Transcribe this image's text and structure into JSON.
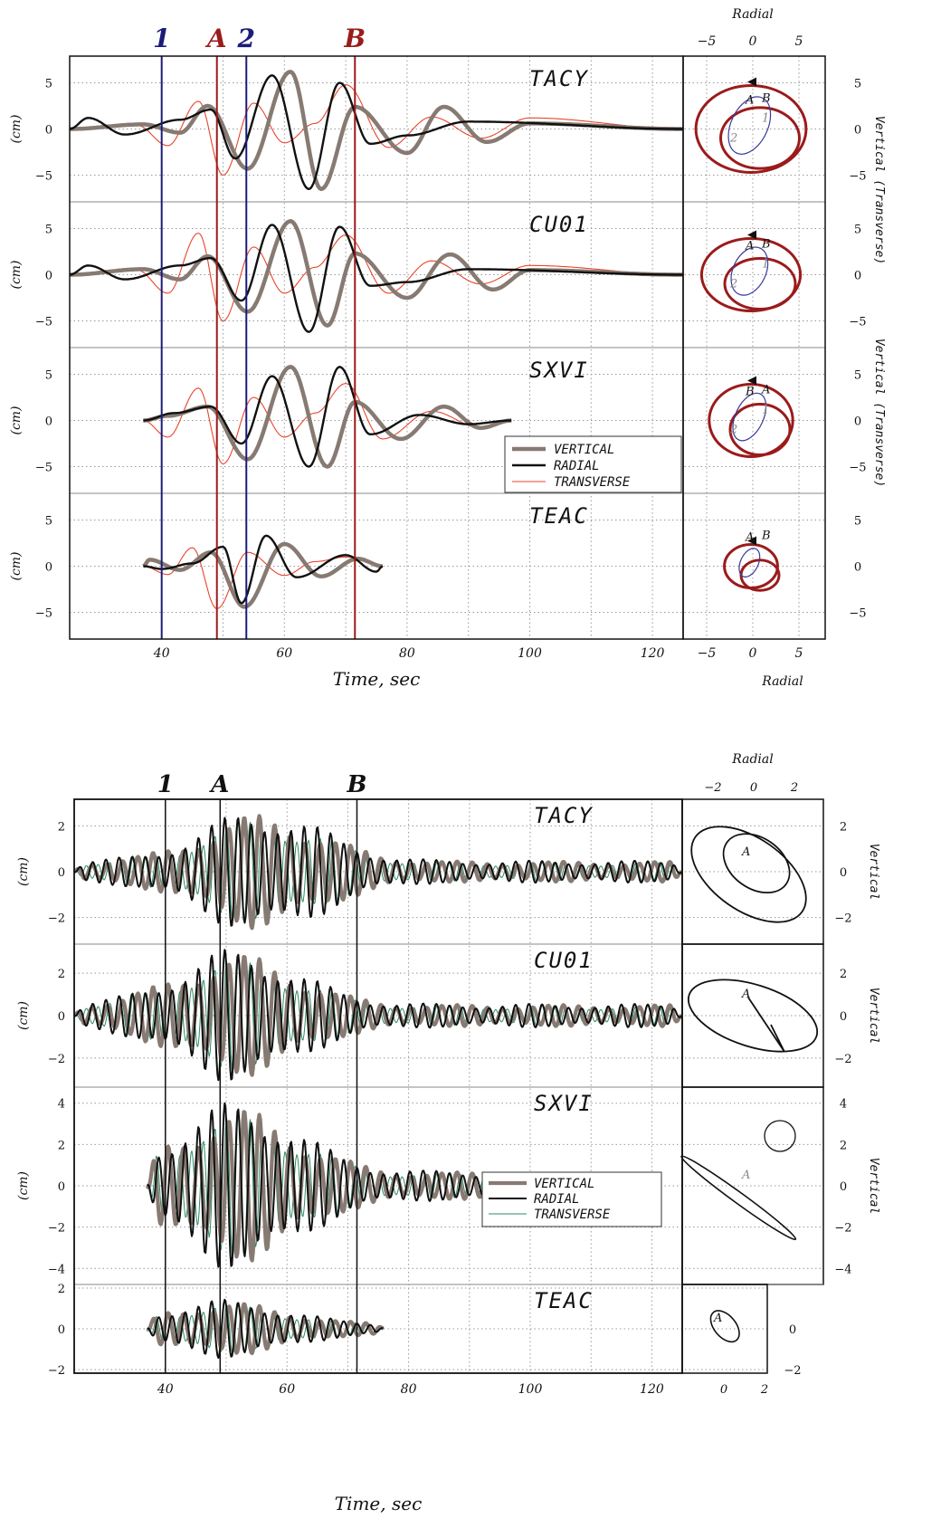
{
  "chart_data": [
    {
      "type": "line",
      "band": "long-period",
      "xlabel": "Time, sec",
      "ylabel": "(cm)",
      "xticks": [
        "40",
        "60",
        "80",
        "100",
        "120"
      ],
      "yticks": [
        "5",
        "0",
        "−5"
      ],
      "markers": [
        {
          "label": "1",
          "time": 40,
          "color": "#1c1c7a"
        },
        {
          "label": "A",
          "time": 49,
          "color": "#9b1b1b"
        },
        {
          "label": "2",
          "time": 53.8,
          "color": "#1c1c7a"
        },
        {
          "label": "B",
          "time": 71.5,
          "color": "#9b1b1b"
        }
      ],
      "legend": [
        "VERTICAL",
        "RADIAL",
        "TRANSVERSE"
      ],
      "series_colors": {
        "VERTICAL": "#877a72",
        "RADIAL": "#111111",
        "TRANSVERSE": "#e8452c"
      },
      "stations": [
        {
          "name": "TACY",
          "t_start": 25,
          "t_end": 125,
          "series": [
            {
              "name": "VERTICAL",
              "peaks": [
                [
                  37,
                  0.5
                ],
                [
                  43,
                  -0.4
                ],
                [
                  47.5,
                  2.5
                ],
                [
                  54,
                  -4.3
                ],
                [
                  61,
                  6.2
                ],
                [
                  66,
                  -6.5
                ],
                [
                  71.5,
                  2.4
                ],
                [
                  80,
                  -2.6
                ],
                [
                  86,
                  2.4
                ],
                [
                  93,
                  -1.4
                ],
                [
                  100,
                  0.6
                ]
              ]
            },
            {
              "name": "RADIAL",
              "peaks": [
                [
                  28,
                  1.2
                ],
                [
                  34,
                  -0.6
                ],
                [
                  43,
                  1.0
                ],
                [
                  48,
                  2.1
                ],
                [
                  52,
                  -3.2
                ],
                [
                  58,
                  5.8
                ],
                [
                  64,
                  -6.5
                ],
                [
                  69,
                  5.0
                ],
                [
                  74,
                  -1.6
                ],
                [
                  80,
                  -0.7
                ],
                [
                  90,
                  0.8
                ]
              ]
            },
            {
              "name": "TRANSVERSE",
              "peaks": [
                [
                  36,
                  0.4
                ],
                [
                  41,
                  -1.8
                ],
                [
                  46,
                  3.0
                ],
                [
                  50,
                  -5.0
                ],
                [
                  55,
                  2.8
                ],
                [
                  60,
                  -1.5
                ],
                [
                  65,
                  0.6
                ],
                [
                  70,
                  4.8
                ],
                [
                  77,
                  -2.0
                ],
                [
                  84,
                  1.3
                ],
                [
                  92,
                  -1.0
                ],
                [
                  100,
                  1.2
                ]
              ]
            }
          ]
        },
        {
          "name": "CU01",
          "t_start": 25,
          "t_end": 125,
          "series": [
            {
              "name": "VERTICAL",
              "peaks": [
                [
                  37,
                  0.6
                ],
                [
                  43,
                  -0.5
                ],
                [
                  47.5,
                  2.0
                ],
                [
                  54,
                  -4.0
                ],
                [
                  61,
                  5.8
                ],
                [
                  67,
                  -5.5
                ],
                [
                  71.5,
                  2.3
                ],
                [
                  80,
                  -2.5
                ],
                [
                  87,
                  2.2
                ],
                [
                  94,
                  -1.6
                ],
                [
                  100,
                  0.5
                ]
              ]
            },
            {
              "name": "RADIAL",
              "peaks": [
                [
                  28,
                  1.0
                ],
                [
                  34,
                  -0.5
                ],
                [
                  43,
                  1.0
                ],
                [
                  48,
                  1.8
                ],
                [
                  53,
                  -2.8
                ],
                [
                  58,
                  5.4
                ],
                [
                  64,
                  -6.2
                ],
                [
                  69,
                  5.2
                ],
                [
                  74,
                  -1.2
                ],
                [
                  80,
                  -0.8
                ],
                [
                  90,
                  0.6
                ]
              ]
            },
            {
              "name": "TRANSVERSE",
              "peaks": [
                [
                  36,
                  0.5
                ],
                [
                  41,
                  -2.0
                ],
                [
                  46,
                  4.5
                ],
                [
                  50,
                  -5.0
                ],
                [
                  55,
                  3.0
                ],
                [
                  60,
                  -2.0
                ],
                [
                  65,
                  0.8
                ],
                [
                  70,
                  4.3
                ],
                [
                  77,
                  -2.0
                ],
                [
                  84,
                  1.5
                ],
                [
                  92,
                  -1.0
                ],
                [
                  100,
                  1.0
                ]
              ]
            }
          ]
        },
        {
          "name": "SXVI",
          "t_start": 37,
          "t_end": 97,
          "series": [
            {
              "name": "VERTICAL",
              "peaks": [
                [
                  41,
                  0.5
                ],
                [
                  47.5,
                  1.5
                ],
                [
                  54,
                  -4.2
                ],
                [
                  61,
                  5.8
                ],
                [
                  67,
                  -5.0
                ],
                [
                  71.5,
                  2.0
                ],
                [
                  79,
                  -2.0
                ],
                [
                  86,
                  1.5
                ],
                [
                  92,
                  -0.8
                ]
              ]
            },
            {
              "name": "RADIAL",
              "peaks": [
                [
                  42,
                  0.8
                ],
                [
                  48,
                  1.5
                ],
                [
                  53,
                  -2.5
                ],
                [
                  58,
                  4.8
                ],
                [
                  64,
                  -5.0
                ],
                [
                  69,
                  5.8
                ],
                [
                  74,
                  -1.5
                ],
                [
                  82,
                  0.6
                ],
                [
                  90,
                  -0.4
                ]
              ]
            },
            {
              "name": "TRANSVERSE",
              "peaks": [
                [
                  41,
                  -1.8
                ],
                [
                  46,
                  3.5
                ],
                [
                  50,
                  -4.7
                ],
                [
                  55,
                  2.5
                ],
                [
                  60,
                  -1.8
                ],
                [
                  65,
                  0.8
                ],
                [
                  70,
                  4.0
                ],
                [
                  76,
                  -2.0
                ],
                [
                  84,
                  1.0
                ],
                [
                  92,
                  -0.8
                ]
              ]
            }
          ]
        },
        {
          "name": "TEAC",
          "t_start": 37,
          "t_end": 76,
          "series": [
            {
              "name": "VERTICAL",
              "peaks": [
                [
                  38,
                  0.7
                ],
                [
                  43,
                  -0.4
                ],
                [
                  48,
                  1.5
                ],
                [
                  53.5,
                  -4.4
                ],
                [
                  60,
                  2.4
                ],
                [
                  66,
                  -1.1
                ],
                [
                  72,
                  0.8
                ]
              ]
            },
            {
              "name": "RADIAL",
              "peaks": [
                [
                  40,
                  -0.3
                ],
                [
                  45,
                  0.3
                ],
                [
                  50,
                  2.1
                ],
                [
                  53,
                  -4.0
                ],
                [
                  57,
                  3.3
                ],
                [
                  62,
                  -1.2
                ],
                [
                  70,
                  1.2
                ],
                [
                  75,
                  -0.6
                ]
              ]
            },
            {
              "name": "TRANSVERSE",
              "peaks": [
                [
                  41,
                  -0.9
                ],
                [
                  45,
                  2.0
                ],
                [
                  49,
                  -4.6
                ],
                [
                  54,
                  1.5
                ],
                [
                  60,
                  -1.0
                ],
                [
                  65,
                  0.5
                ],
                [
                  70,
                  1.0
                ]
              ]
            }
          ]
        }
      ],
      "particle_motion": {
        "xlabel": "Radial",
        "xticks": [
          "−5",
          "0",
          "5"
        ],
        "yticks": [
          "5",
          "0",
          "−5"
        ],
        "ylabel": "Vertical (Transverse)",
        "panels": [
          {
            "station": "TACY",
            "labels": [
              "A",
              "B",
              "1",
              "2"
            ]
          },
          {
            "station": "CU01",
            "labels": [
              "A",
              "B",
              "1",
              "2"
            ]
          },
          {
            "station": "SXVI",
            "labels": [
              "B",
              "A",
              "1",
              "2"
            ]
          },
          {
            "station": "TEAC",
            "labels": [
              "A",
              "B"
            ]
          }
        ]
      }
    },
    {
      "type": "line",
      "band": "short-period",
      "xlabel": "Time, sec",
      "ylabel": "(cm)",
      "xticks": [
        "40",
        "60",
        "80",
        "100",
        "120"
      ],
      "markers": [
        {
          "label": "1",
          "time": 40,
          "color": "#111111"
        },
        {
          "label": "A",
          "time": 49,
          "color": "#111111"
        },
        {
          "label": "B",
          "time": 71.5,
          "color": "#111111"
        }
      ],
      "legend": [
        "VERTICAL",
        "RADIAL",
        "TRANSVERSE"
      ],
      "series_colors": {
        "VERTICAL": "#877a72",
        "RADIAL": "#111111",
        "TRANSVERSE": "#2e8b65"
      },
      "stations": [
        {
          "name": "TACY",
          "yticks": [
            "2",
            "0",
            "−2"
          ],
          "ylim": [
            -3,
            3
          ],
          "t_start": 25,
          "t_end": 125,
          "peak": 2.7,
          "envelope_center": 56
        },
        {
          "name": "CU01",
          "yticks": [
            "2",
            "0",
            "−2"
          ],
          "ylim": [
            -3.2,
            3.2
          ],
          "t_start": 25,
          "t_end": 125,
          "peak": 3.1,
          "envelope_center": 52
        },
        {
          "name": "SXVI",
          "yticks": [
            "4",
            "2",
            "0",
            "−2",
            "−4"
          ],
          "ylim": [
            -4.6,
            4.6
          ],
          "t_start": 37,
          "t_end": 97,
          "peak": 4.0,
          "envelope_center": 52
        },
        {
          "name": "TEAC",
          "yticks": [
            "2",
            "0",
            "−2"
          ],
          "ylim": [
            -2,
            2
          ],
          "t_start": 37,
          "t_end": 76,
          "peak": 1.4,
          "envelope_center": 50
        }
      ],
      "particle_motion": {
        "xlabel": "Radial",
        "xticks_top": [
          "−2",
          "0",
          "2"
        ],
        "xticks_bottom": [
          "0",
          "2"
        ],
        "ylabel": "Vertical",
        "panels": [
          {
            "station": "TACY",
            "labels": [
              "A"
            ],
            "yticks": [
              "2",
              "0",
              "−2"
            ]
          },
          {
            "station": "CU01",
            "labels": [
              "A"
            ],
            "yticks": [
              "2",
              "0",
              "−2"
            ]
          },
          {
            "station": "SXVI",
            "labels": [
              "A"
            ],
            "yticks": [
              "4",
              "2",
              "0",
              "−2",
              "−4"
            ]
          },
          {
            "station": "TEAC",
            "labels": [
              "A"
            ],
            "yticks": [
              "0",
              "−2"
            ]
          }
        ]
      }
    }
  ]
}
